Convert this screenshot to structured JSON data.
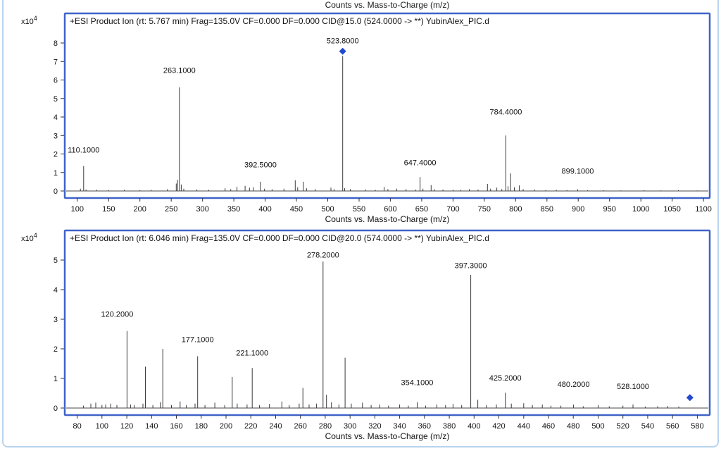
{
  "top_chart_fragment": {
    "xlabel": "Counts vs. Mass-to-Charge (m/z)"
  },
  "colors": {
    "panel_border": "#3f63c8",
    "outer_border": "#b9d3ee",
    "marker": "#2349cf",
    "peak_line": "#3a3a3a"
  },
  "chart_data": [
    {
      "type": "bar",
      "subtype": "mass-spectrum",
      "header": "+ESI Product Ion (rt: 5.767 min) Frag=135.0V CF=0.000 DF=0.000 CID@15.0 (524.0000 -> **) YubinAlex_PIC.d",
      "xlabel": "Counts vs. Mass-to-Charge (m/z)",
      "y_unit": {
        "base": "x10",
        "exp": "4"
      },
      "xlim": [
        80,
        1110
      ],
      "xticks": {
        "start": 100,
        "end": 1100,
        "step": 50
      },
      "ylim": [
        0,
        8.4
      ],
      "yticks": {
        "start": 0,
        "end": 8,
        "step": 1
      },
      "labeled_peaks": [
        {
          "mz": 110.1,
          "i": 1.35,
          "label": "110.1000",
          "ly": 2.2
        },
        {
          "mz": 263.1,
          "i": 5.6,
          "label": "263.1000",
          "ly": 6.5
        },
        {
          "mz": 392.5,
          "i": 0.5,
          "label": "392.5000",
          "ly": 1.4
        },
        {
          "mz": 523.8,
          "i": 7.3,
          "label": "523.8000",
          "ly": 8.1
        },
        {
          "mz": 647.4,
          "i": 0.75,
          "label": "647.4000",
          "ly": 1.5
        },
        {
          "mz": 784.4,
          "i": 3.0,
          "label": "784.4000",
          "ly": 4.25
        },
        {
          "mz": 899.1,
          "i": 0.09,
          "label": "899.1000",
          "ly": 1.05
        }
      ],
      "precursor_marker": {
        "mz": 523.8,
        "value": 7.55
      },
      "peaks": [
        [
          105,
          0.12
        ],
        [
          110.1,
          1.35
        ],
        [
          114,
          0.08
        ],
        [
          131,
          0.07
        ],
        [
          150,
          0.05
        ],
        [
          175,
          0.06
        ],
        [
          200,
          0.05
        ],
        [
          218,
          0.06
        ],
        [
          244,
          0.1
        ],
        [
          258,
          0.4
        ],
        [
          260,
          0.6
        ],
        [
          263.1,
          5.6
        ],
        [
          266,
          0.35
        ],
        [
          270,
          0.12
        ],
        [
          291,
          0.08
        ],
        [
          310,
          0.06
        ],
        [
          336,
          0.15
        ],
        [
          345,
          0.1
        ],
        [
          355,
          0.22
        ],
        [
          368,
          0.28
        ],
        [
          375,
          0.18
        ],
        [
          381,
          0.2
        ],
        [
          392.5,
          0.5
        ],
        [
          399,
          0.12
        ],
        [
          411,
          0.1
        ],
        [
          430,
          0.12
        ],
        [
          448,
          0.58
        ],
        [
          452,
          0.2
        ],
        [
          461,
          0.5
        ],
        [
          466,
          0.15
        ],
        [
          480,
          0.1
        ],
        [
          505,
          0.18
        ],
        [
          510,
          0.1
        ],
        [
          523.8,
          7.3
        ],
        [
          527,
          0.15
        ],
        [
          536,
          0.1
        ],
        [
          560,
          0.08
        ],
        [
          576,
          0.06
        ],
        [
          590,
          0.22
        ],
        [
          596,
          0.1
        ],
        [
          610,
          0.12
        ],
        [
          625,
          0.1
        ],
        [
          640,
          0.08
        ],
        [
          647.4,
          0.75
        ],
        [
          652,
          0.12
        ],
        [
          665,
          0.32
        ],
        [
          670,
          0.1
        ],
        [
          684,
          0.08
        ],
        [
          700,
          0.07
        ],
        [
          712,
          0.06
        ],
        [
          726,
          0.1
        ],
        [
          740,
          0.08
        ],
        [
          755,
          0.38
        ],
        [
          760,
          0.12
        ],
        [
          770,
          0.18
        ],
        [
          778,
          0.1
        ],
        [
          784.4,
          3.0
        ],
        [
          788,
          0.25
        ],
        [
          792,
          0.95
        ],
        [
          798,
          0.2
        ],
        [
          806,
          0.3
        ],
        [
          812,
          0.1
        ],
        [
          830,
          0.08
        ],
        [
          848,
          0.05
        ],
        [
          865,
          0.06
        ],
        [
          882,
          0.05
        ],
        [
          899.1,
          0.09
        ],
        [
          915,
          0.04
        ],
        [
          940,
          0.04
        ],
        [
          968,
          0.03
        ],
        [
          1005,
          0.04
        ],
        [
          1032,
          0.03
        ],
        [
          1060,
          0.04
        ],
        [
          1090,
          0.03
        ]
      ]
    },
    {
      "type": "bar",
      "subtype": "mass-spectrum",
      "header": "+ESI Product Ion (rt: 6.046 min) Frag=135.0V CF=0.000 DF=0.000 CID@20.0 (574.0000 -> **) YubinAlex_PIC.d",
      "xlabel": "Counts vs. Mass-to-Charge (m/z)",
      "y_unit": {
        "base": "x10",
        "exp": "4"
      },
      "xlim": [
        70,
        590
      ],
      "xticks": {
        "start": 80,
        "end": 580,
        "step": 20
      },
      "ylim": [
        0,
        5.6
      ],
      "yticks": {
        "start": 0,
        "end": 5,
        "step": 1
      },
      "labeled_peaks": [
        {
          "mz": 120.2,
          "i": 2.6,
          "label": "120.2000",
          "ly": 3.15,
          "dx": -14
        },
        {
          "mz": 177.1,
          "i": 1.75,
          "label": "177.1000",
          "ly": 2.3
        },
        {
          "mz": 221.1,
          "i": 1.35,
          "label": "221.1000",
          "ly": 1.85
        },
        {
          "mz": 278.2,
          "i": 4.95,
          "label": "278.2000",
          "ly": 5.15
        },
        {
          "mz": 354.1,
          "i": 0.2,
          "label": "354.1000",
          "ly": 0.85
        },
        {
          "mz": 397.3,
          "i": 4.5,
          "label": "397.3000",
          "ly": 4.8
        },
        {
          "mz": 425.2,
          "i": 0.52,
          "label": "425.2000",
          "ly": 1.0
        },
        {
          "mz": 480.2,
          "i": 0.12,
          "label": "480.2000",
          "ly": 0.78
        },
        {
          "mz": 528.1,
          "i": 0.12,
          "label": "528.1000",
          "ly": 0.72
        }
      ],
      "precursor_marker": {
        "mz": 574.0,
        "value": 0.35
      },
      "peaks": [
        [
          85,
          0.08
        ],
        [
          91,
          0.15
        ],
        [
          95,
          0.18
        ],
        [
          100,
          0.1
        ],
        [
          103,
          0.12
        ],
        [
          107,
          0.15
        ],
        [
          112,
          0.1
        ],
        [
          120.2,
          2.6
        ],
        [
          123,
          0.12
        ],
        [
          126,
          0.1
        ],
        [
          133,
          0.15
        ],
        [
          135,
          1.4
        ],
        [
          141,
          0.1
        ],
        [
          147,
          0.2
        ],
        [
          149,
          2.0
        ],
        [
          156,
          0.1
        ],
        [
          163,
          0.22
        ],
        [
          168,
          0.1
        ],
        [
          175,
          0.15
        ],
        [
          177.1,
          1.75
        ],
        [
          183,
          0.1
        ],
        [
          191,
          0.18
        ],
        [
          199,
          0.1
        ],
        [
          205,
          1.05
        ],
        [
          209,
          0.15
        ],
        [
          217,
          0.12
        ],
        [
          221.1,
          1.35
        ],
        [
          227,
          0.1
        ],
        [
          235,
          0.14
        ],
        [
          245,
          0.22
        ],
        [
          251,
          0.1
        ],
        [
          259,
          0.15
        ],
        [
          262,
          0.68
        ],
        [
          267,
          0.12
        ],
        [
          273,
          0.15
        ],
        [
          278.2,
          4.95
        ],
        [
          281,
          0.45
        ],
        [
          285,
          0.2
        ],
        [
          291,
          0.12
        ],
        [
          296,
          1.7
        ],
        [
          301,
          0.15
        ],
        [
          310,
          0.18
        ],
        [
          317,
          0.1
        ],
        [
          324,
          0.12
        ],
        [
          331,
          0.08
        ],
        [
          340,
          0.12
        ],
        [
          347,
          0.08
        ],
        [
          354.1,
          0.2
        ],
        [
          361,
          0.08
        ],
        [
          370,
          0.12
        ],
        [
          377,
          0.1
        ],
        [
          383,
          0.14
        ],
        [
          390,
          0.1
        ],
        [
          397.3,
          4.5
        ],
        [
          403,
          0.28
        ],
        [
          410,
          0.1
        ],
        [
          418,
          0.12
        ],
        [
          425.2,
          0.52
        ],
        [
          430,
          0.15
        ],
        [
          440,
          0.16
        ],
        [
          447,
          0.1
        ],
        [
          455,
          0.12
        ],
        [
          462,
          0.08
        ],
        [
          470,
          0.08
        ],
        [
          480.2,
          0.12
        ],
        [
          488,
          0.06
        ],
        [
          500,
          0.1
        ],
        [
          509,
          0.06
        ],
        [
          520,
          0.08
        ],
        [
          528.1,
          0.12
        ],
        [
          538,
          0.05
        ],
        [
          548,
          0.06
        ],
        [
          556,
          0.07
        ],
        [
          565,
          0.05
        ]
      ]
    }
  ]
}
